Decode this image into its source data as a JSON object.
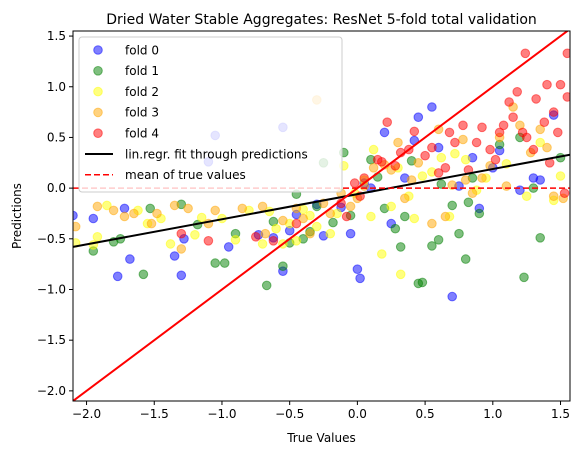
{
  "chart_data": {
    "type": "scatter",
    "title": "Dried Water Stable Aggregates: ResNet 5-fold total validation",
    "xlabel": "True Values",
    "ylabel": "Predictions",
    "xlim": [
      -2.1,
      1.57
    ],
    "ylim": [
      -2.1,
      1.55
    ],
    "xticks": [
      -2.0,
      -1.5,
      -1.0,
      -0.5,
      0.0,
      0.5,
      1.0,
      1.5
    ],
    "xtick_labels": [
      "−2.0",
      "−1.5",
      "−1.0",
      "−0.5",
      "0.0",
      "0.5",
      "1.0",
      "1.5"
    ],
    "yticks": [
      -2.0,
      -1.5,
      -1.0,
      -0.5,
      0.0,
      0.5,
      1.0,
      1.5
    ],
    "ytick_labels": [
      "−2.0",
      "−1.5",
      "−1.0",
      "−0.5",
      "0.0",
      "0.5",
      "1.0",
      "1.5"
    ],
    "legend_location": "upper-left",
    "series": [
      {
        "name": "fold 0",
        "color": "#0000ff",
        "points": [
          [
            -2.1,
            -0.27
          ],
          [
            -1.95,
            -0.3
          ],
          [
            -1.77,
            -0.87
          ],
          [
            -1.72,
            -0.2
          ],
          [
            -1.68,
            -0.7
          ],
          [
            -1.35,
            -0.67
          ],
          [
            -1.3,
            -0.86
          ],
          [
            -1.28,
            -0.5
          ],
          [
            -1.1,
            0.26
          ],
          [
            -1.05,
            0.52
          ],
          [
            -0.95,
            -0.58
          ],
          [
            -0.73,
            -0.46
          ],
          [
            -0.62,
            -0.49
          ],
          [
            -0.55,
            -0.82
          ],
          [
            -0.55,
            0.6
          ],
          [
            -0.5,
            -0.42
          ],
          [
            -0.45,
            -0.26
          ],
          [
            -0.3,
            -0.16
          ],
          [
            -0.25,
            -0.47
          ],
          [
            -0.12,
            -0.19
          ],
          [
            -0.05,
            -0.45
          ],
          [
            0.0,
            -0.8
          ],
          [
            0.02,
            -0.89
          ],
          [
            0.05,
            0.05
          ],
          [
            0.1,
            0.0
          ],
          [
            0.2,
            0.55
          ],
          [
            0.25,
            -0.35
          ],
          [
            0.35,
            0.1
          ],
          [
            0.42,
            0.47
          ],
          [
            0.45,
            0.7
          ],
          [
            0.55,
            0.8
          ],
          [
            0.6,
            0.4
          ],
          [
            0.7,
            -1.07
          ],
          [
            0.75,
            0.02
          ],
          [
            0.85,
            0.3
          ],
          [
            0.9,
            -0.2
          ],
          [
            1.0,
            0.2
          ],
          [
            1.05,
            0.37
          ],
          [
            1.2,
            -0.02
          ],
          [
            1.3,
            0.1
          ],
          [
            1.35,
            0.08
          ],
          [
            1.45,
            0.72
          ]
        ]
      },
      {
        "name": "fold 1",
        "color": "#008000",
        "points": [
          [
            -1.95,
            -0.62
          ],
          [
            -1.8,
            -0.53
          ],
          [
            -1.75,
            -0.5
          ],
          [
            -1.58,
            -0.85
          ],
          [
            -1.53,
            -0.2
          ],
          [
            -1.3,
            -0.16
          ],
          [
            -1.18,
            -0.36
          ],
          [
            -1.05,
            -0.74
          ],
          [
            -0.98,
            -0.74
          ],
          [
            -0.9,
            -0.45
          ],
          [
            -0.67,
            -0.96
          ],
          [
            -0.62,
            -0.33
          ],
          [
            -0.55,
            -0.77
          ],
          [
            -0.5,
            -0.54
          ],
          [
            -0.45,
            -0.06
          ],
          [
            -0.4,
            -0.5
          ],
          [
            -0.35,
            -0.43
          ],
          [
            -0.3,
            -0.18
          ],
          [
            -0.25,
            0.25
          ],
          [
            -0.18,
            -0.34
          ],
          [
            -0.1,
            0.35
          ],
          [
            -0.05,
            -0.27
          ],
          [
            0.1,
            0.28
          ],
          [
            0.15,
            0.11
          ],
          [
            0.2,
            -0.2
          ],
          [
            0.28,
            -0.4
          ],
          [
            0.32,
            -0.58
          ],
          [
            0.35,
            -0.28
          ],
          [
            0.4,
            0.27
          ],
          [
            0.45,
            -0.94
          ],
          [
            0.48,
            -0.93
          ],
          [
            0.55,
            -0.57
          ],
          [
            0.6,
            -0.51
          ],
          [
            0.62,
            0.04
          ],
          [
            0.7,
            -0.17
          ],
          [
            0.75,
            -0.45
          ],
          [
            0.8,
            -0.7
          ],
          [
            0.82,
            -0.14
          ],
          [
            0.85,
            0.1
          ],
          [
            0.9,
            -0.25
          ],
          [
            1.05,
            0.43
          ],
          [
            1.2,
            0.5
          ],
          [
            1.23,
            -0.88
          ],
          [
            1.3,
            0.0
          ],
          [
            1.35,
            -0.49
          ],
          [
            1.5,
            0.3
          ]
        ]
      },
      {
        "name": "fold 2",
        "color": "#ffff00",
        "points": [
          [
            -2.08,
            -0.54
          ],
          [
            -1.95,
            -0.56
          ],
          [
            -1.92,
            -0.48
          ],
          [
            -1.85,
            -0.17
          ],
          [
            -1.62,
            -0.22
          ],
          [
            -1.55,
            -0.35
          ],
          [
            -1.45,
            -0.3
          ],
          [
            -1.38,
            -0.55
          ],
          [
            -1.2,
            -0.46
          ],
          [
            -1.15,
            -0.29
          ],
          [
            -1.0,
            -0.3
          ],
          [
            -0.9,
            -0.51
          ],
          [
            -0.8,
            -0.22
          ],
          [
            -0.7,
            -0.55
          ],
          [
            -0.65,
            -0.23
          ],
          [
            -0.6,
            -0.4
          ],
          [
            -0.55,
            -0.55
          ],
          [
            -0.5,
            -0.35
          ],
          [
            -0.45,
            -0.52
          ],
          [
            -0.4,
            -0.21
          ],
          [
            -0.35,
            -0.27
          ],
          [
            -0.3,
            -0.38
          ],
          [
            -0.2,
            -0.45
          ],
          [
            -0.15,
            -0.25
          ],
          [
            -0.1,
            0.22
          ],
          [
            -0.02,
            -0.05
          ],
          [
            0.05,
            0.08
          ],
          [
            0.1,
            -0.28
          ],
          [
            0.12,
            0.38
          ],
          [
            0.18,
            -0.65
          ],
          [
            0.25,
            -0.18
          ],
          [
            0.3,
            0.2
          ],
          [
            0.32,
            -0.85
          ],
          [
            0.38,
            -0.08
          ],
          [
            0.42,
            -0.3
          ],
          [
            0.48,
            0.12
          ],
          [
            0.55,
            0.16
          ],
          [
            0.62,
            0.3
          ],
          [
            0.68,
            -0.28
          ],
          [
            0.72,
            0.34
          ],
          [
            0.8,
            0.28
          ],
          [
            0.88,
            -0.02
          ],
          [
            0.95,
            0.1
          ],
          [
            1.1,
            0.24
          ],
          [
            1.25,
            -0.08
          ],
          [
            1.35,
            0.45
          ],
          [
            1.45,
            -0.12
          ],
          [
            1.5,
            0.12
          ]
        ]
      },
      {
        "name": "fold 3",
        "color": "#ffa500",
        "points": [
          [
            -2.08,
            -0.38
          ],
          [
            -1.92,
            -0.18
          ],
          [
            -1.8,
            -0.22
          ],
          [
            -1.72,
            -0.28
          ],
          [
            -1.65,
            -0.25
          ],
          [
            -1.52,
            -0.35
          ],
          [
            -1.48,
            -0.25
          ],
          [
            -1.35,
            -0.17
          ],
          [
            -1.3,
            -0.6
          ],
          [
            -1.25,
            -0.2
          ],
          [
            -1.1,
            -0.35
          ],
          [
            -1.05,
            -0.22
          ],
          [
            -0.85,
            -0.2
          ],
          [
            -0.7,
            -0.18
          ],
          [
            -0.68,
            -0.45
          ],
          [
            -0.55,
            -0.32
          ],
          [
            -0.45,
            -0.2
          ],
          [
            -0.4,
            -0.3
          ],
          [
            -0.35,
            -0.45
          ],
          [
            -0.3,
            0.87
          ],
          [
            -0.25,
            -0.15
          ],
          [
            -0.2,
            -0.25
          ],
          [
            -0.12,
            -0.05
          ],
          [
            -0.05,
            -0.18
          ],
          [
            0.0,
            -0.1
          ],
          [
            0.05,
            0.02
          ],
          [
            0.12,
            0.2
          ],
          [
            0.2,
            0.23
          ],
          [
            0.25,
            0.18
          ],
          [
            0.3,
            0.45
          ],
          [
            0.35,
            -0.1
          ],
          [
            0.4,
            0.08
          ],
          [
            0.45,
            0.25
          ],
          [
            0.55,
            -0.35
          ],
          [
            0.6,
            0.58
          ],
          [
            0.65,
            -0.28
          ],
          [
            0.7,
            0.03
          ],
          [
            0.78,
            0.48
          ],
          [
            0.8,
            0.08
          ],
          [
            0.85,
            -0.05
          ],
          [
            0.92,
            0.1
          ],
          [
            0.98,
            0.22
          ],
          [
            1.05,
            0.5
          ],
          [
            1.1,
            0.02
          ],
          [
            1.15,
            0.8
          ],
          [
            1.2,
            0.62
          ],
          [
            1.28,
            0.35
          ],
          [
            1.35,
            0.58
          ],
          [
            1.4,
            0.4
          ],
          [
            1.45,
            -0.08
          ],
          [
            1.52,
            -0.1
          ]
        ]
      },
      {
        "name": "fold 4",
        "color": "#ff0000",
        "points": [
          [
            -1.3,
            -0.45
          ],
          [
            -1.1,
            -0.52
          ],
          [
            -0.75,
            -0.48
          ],
          [
            -0.62,
            -0.52
          ],
          [
            -0.45,
            -0.35
          ],
          [
            -0.12,
            -0.15
          ],
          [
            -0.08,
            -0.28
          ],
          [
            -0.02,
            0.05
          ],
          [
            0.02,
            -0.08
          ],
          [
            0.05,
            0.1
          ],
          [
            0.15,
            0.28
          ],
          [
            0.18,
            0.26
          ],
          [
            0.22,
            0.65
          ],
          [
            0.28,
            0.22
          ],
          [
            0.32,
            0.35
          ],
          [
            0.38,
            0.38
          ],
          [
            0.42,
            0.56
          ],
          [
            0.5,
            0.32
          ],
          [
            0.55,
            0.4
          ],
          [
            0.6,
            0.15
          ],
          [
            0.65,
            0.2
          ],
          [
            0.68,
            0.55
          ],
          [
            0.72,
            0.45
          ],
          [
            0.78,
            0.62
          ],
          [
            0.82,
            0.18
          ],
          [
            0.88,
            0.45
          ],
          [
            0.92,
            0.6
          ],
          [
            0.98,
            0.38
          ],
          [
            1.02,
            0.28
          ],
          [
            1.05,
            0.55
          ],
          [
            1.08,
            0.62
          ],
          [
            1.12,
            0.85
          ],
          [
            1.15,
            0.7
          ],
          [
            1.18,
            0.95
          ],
          [
            1.22,
            0.55
          ],
          [
            1.24,
            1.33
          ],
          [
            1.25,
            0.5
          ],
          [
            1.3,
            0.38
          ],
          [
            1.32,
            0.88
          ],
          [
            1.38,
            0.65
          ],
          [
            1.4,
            1.02
          ],
          [
            1.42,
            0.25
          ],
          [
            1.45,
            0.75
          ],
          [
            1.48,
            0.55
          ],
          [
            1.5,
            1.02
          ],
          [
            1.55,
            1.33
          ],
          [
            1.55,
            0.9
          ],
          [
            1.53,
            -0.05
          ]
        ]
      }
    ],
    "lines": [
      {
        "name": "lin.regr. fit through predictions",
        "color": "#000000",
        "style": "solid",
        "points": [
          [
            -2.1,
            -0.58
          ],
          [
            1.57,
            0.33
          ]
        ]
      },
      {
        "name": "mean of true values",
        "color": "#ff0000",
        "style": "dashed",
        "points": [
          [
            -2.1,
            0.0
          ],
          [
            1.57,
            0.0
          ]
        ]
      },
      {
        "name": "",
        "color": "#ff0000",
        "style": "solid",
        "points": [
          [
            -2.1,
            -2.1
          ],
          [
            1.57,
            1.57
          ]
        ]
      }
    ]
  }
}
